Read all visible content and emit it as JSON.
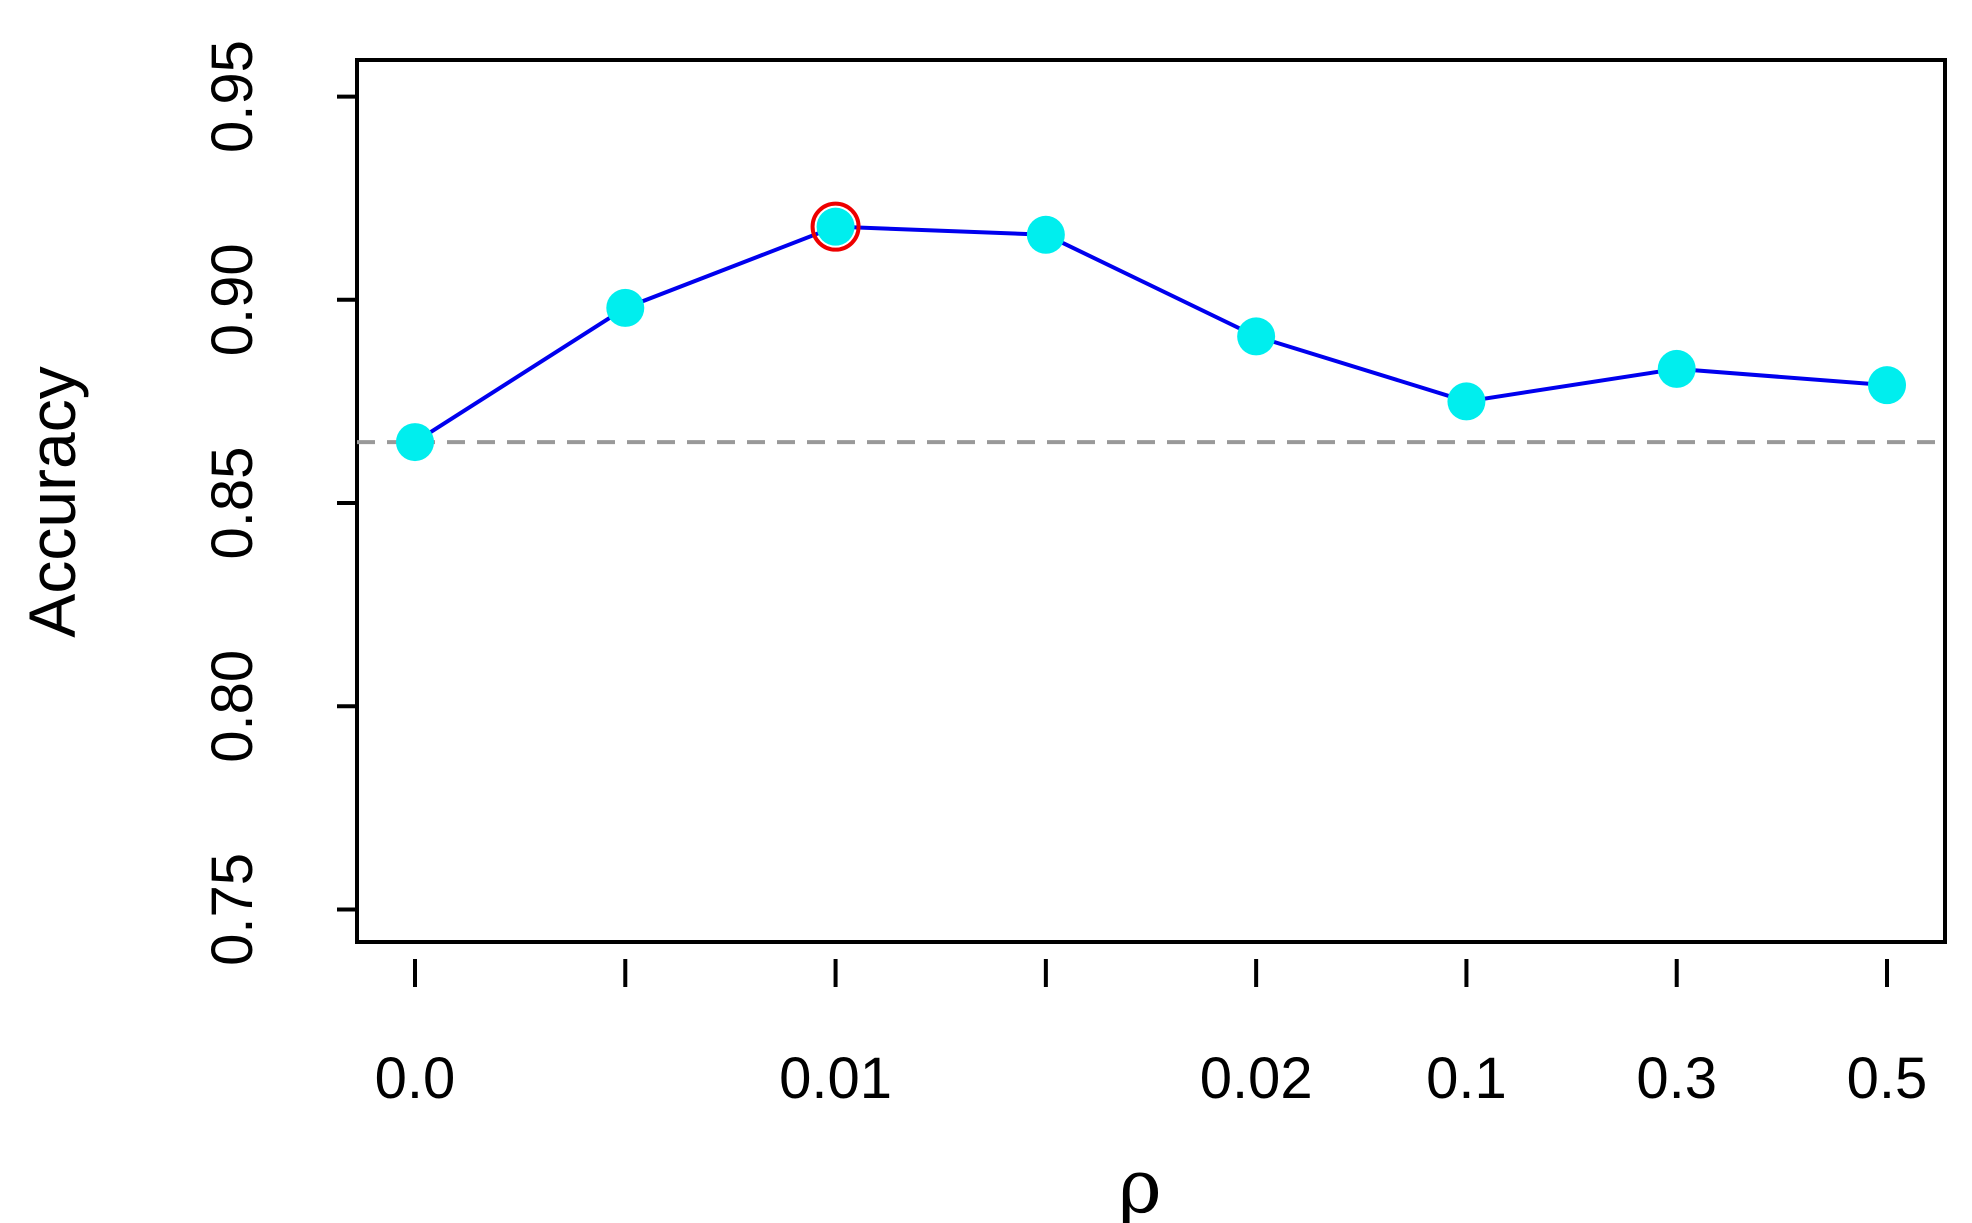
{
  "chart_data": {
    "type": "line",
    "title": "",
    "xlabel": "ρ",
    "ylabel": "Accuracy",
    "x_categories": [
      "0.0",
      "",
      "0.01",
      "",
      "0.02",
      "0.1",
      "0.3",
      "0.5"
    ],
    "x_tick_labels": [
      "0.0",
      "0.01",
      "0.02",
      "0.1",
      "0.3",
      "0.5"
    ],
    "series": [
      {
        "values": [
          0.865,
          0.898,
          0.918,
          0.916,
          0.891,
          0.875,
          0.883,
          0.879
        ],
        "line_color": "#0000ee",
        "marker_color": "#00eeee"
      }
    ],
    "highlight": {
      "index": 2,
      "color": "#ee0000"
    },
    "reference_line": {
      "y": 0.865,
      "color": "#999999",
      "style": "dashed"
    },
    "yticks": [
      0.75,
      0.8,
      0.85,
      0.9,
      0.95
    ],
    "ytick_labels": [
      "0.75",
      "0.80",
      "0.85",
      "0.90",
      "0.95"
    ],
    "ylim": [
      0.742,
      0.959
    ],
    "grid": false,
    "legend": "none"
  }
}
